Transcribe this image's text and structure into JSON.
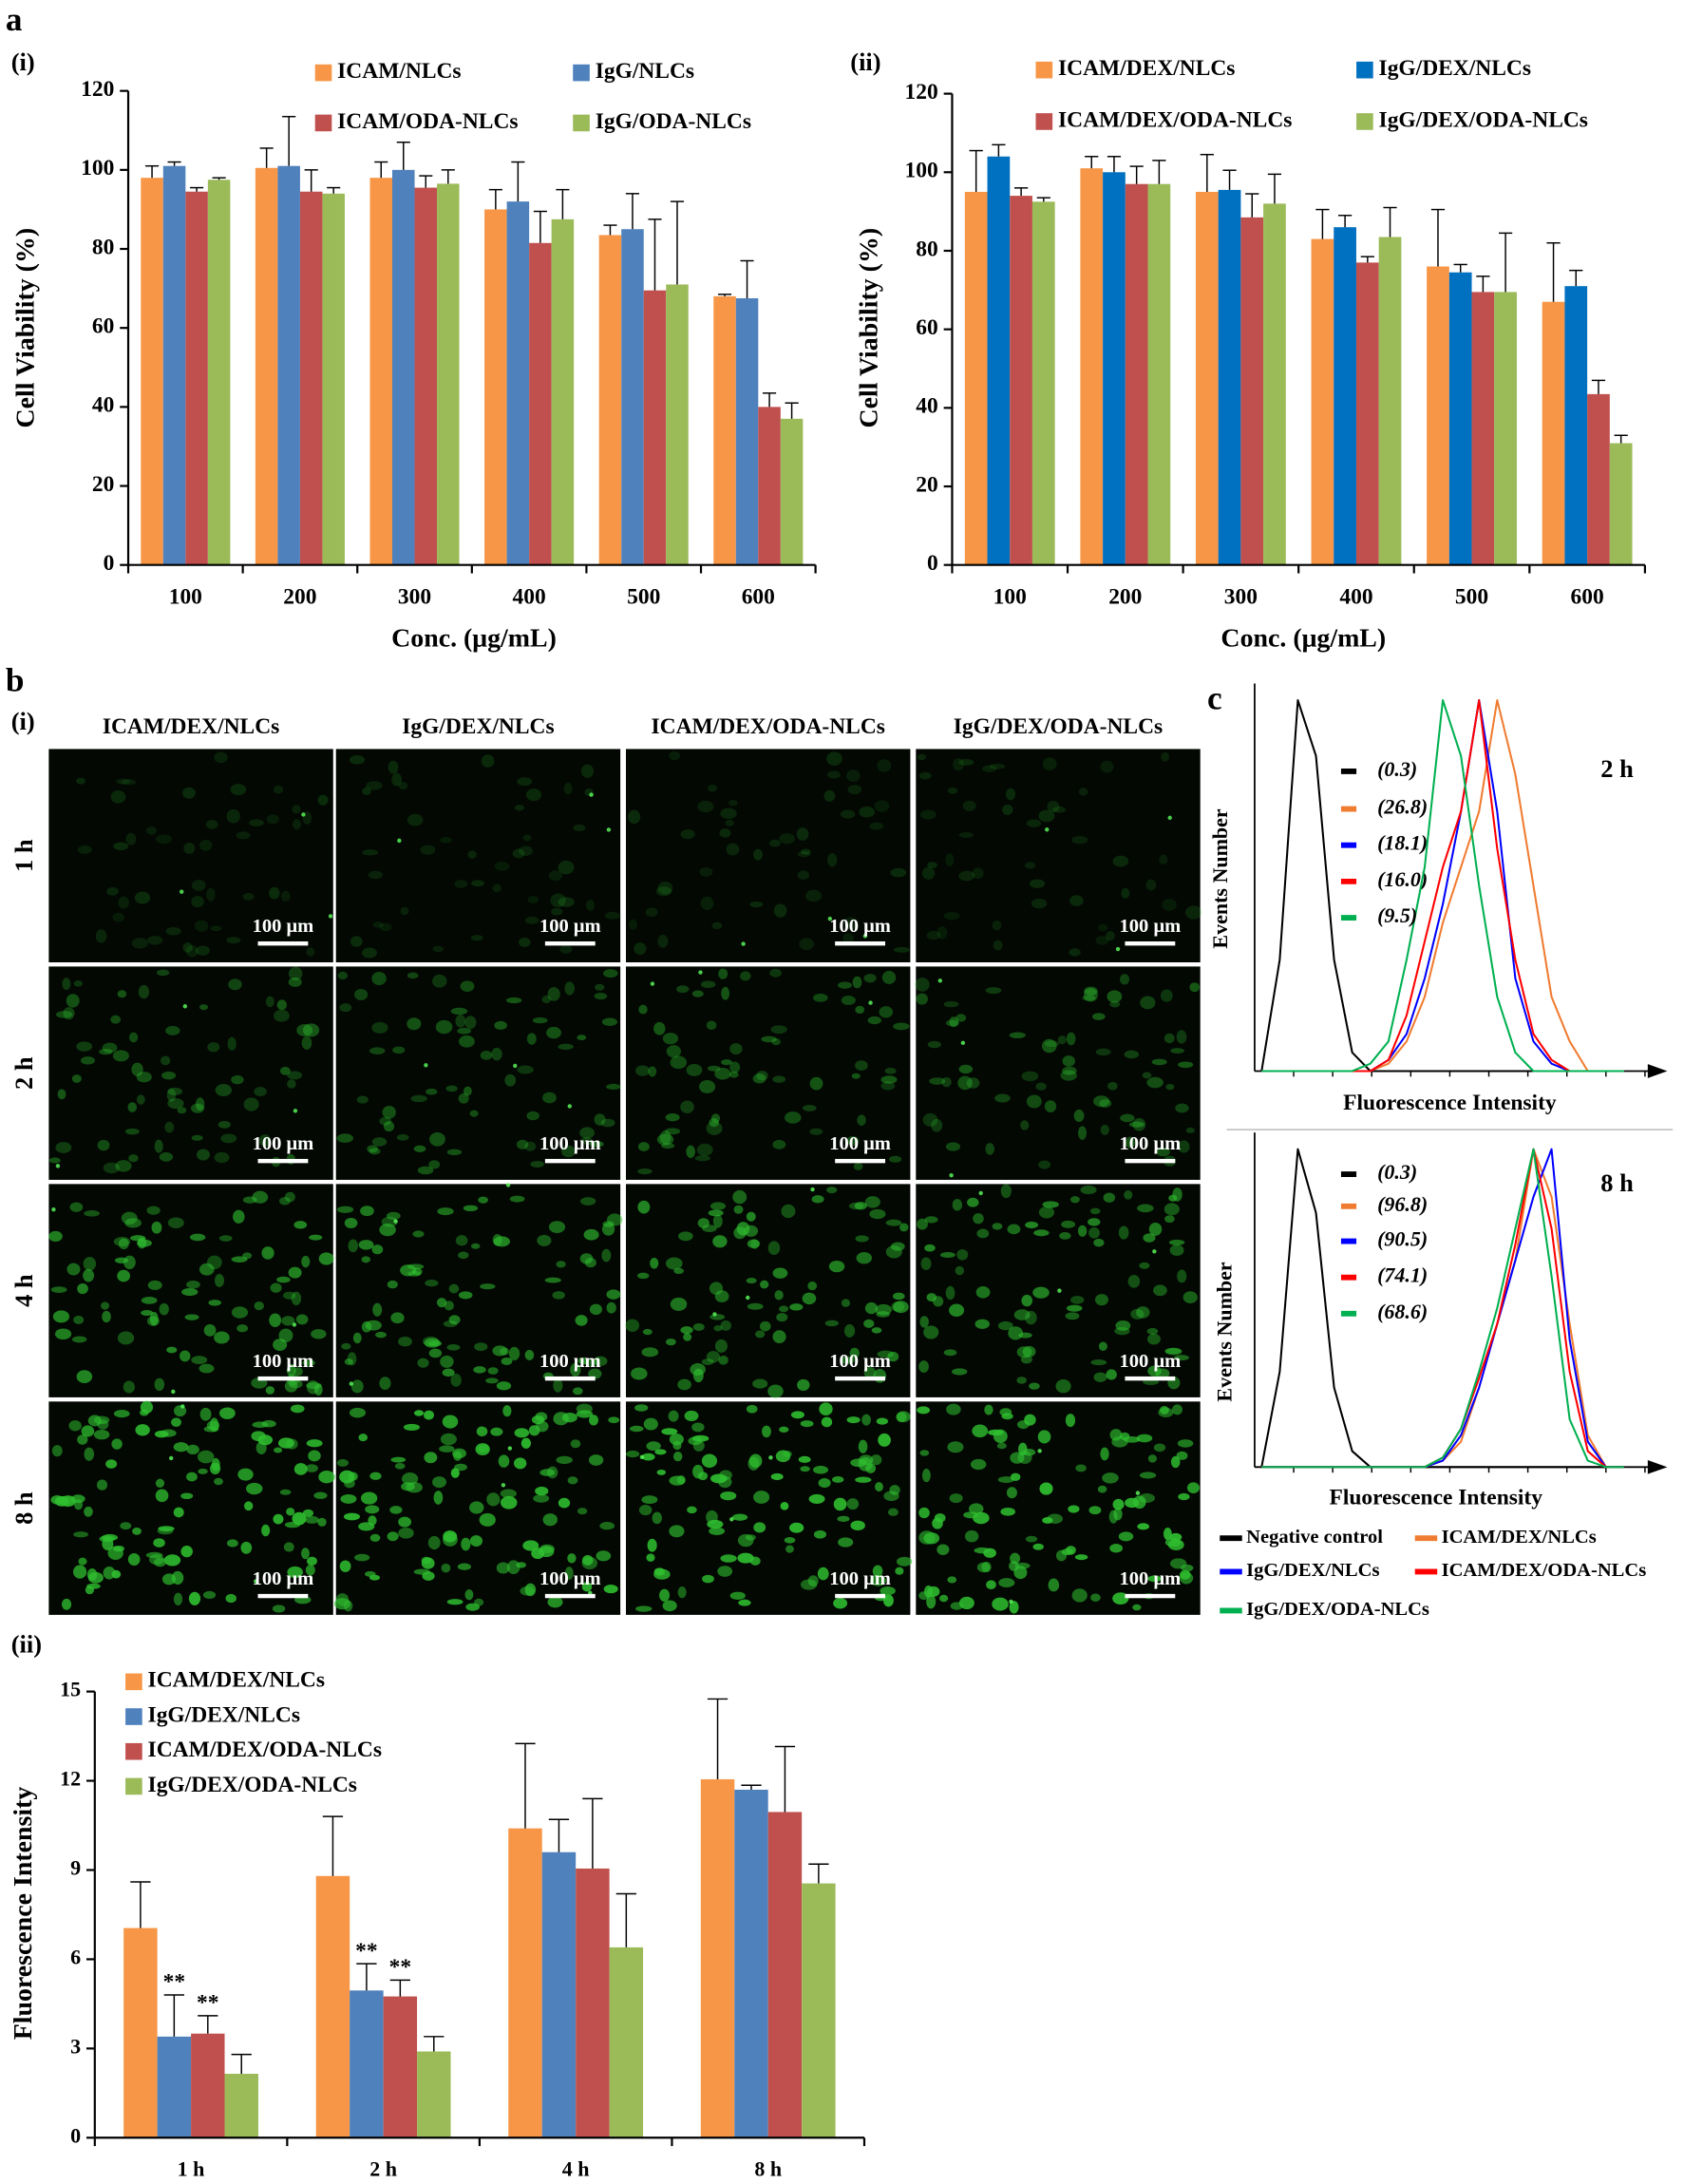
{
  "panel_labels": [
    "a",
    "b",
    "c"
  ],
  "micrographs": {
    "label": "(i)",
    "columns": [
      "ICAM/DEX/NLCs",
      "IgG/DEX/NLCs",
      "ICAM/DEX/ODA-NLCs",
      "IgG/DEX/ODA-NLCs"
    ],
    "rows": [
      "1 h",
      "2 h",
      "4 h",
      "8 h"
    ],
    "scale_bar": "100 μm"
  },
  "chart_data": [
    {
      "type": "bar",
      "label": "(i)",
      "xlabel": "Conc. (μg/mL)",
      "ylabel": "Cell Viability (%)",
      "categories": [
        "100",
        "200",
        "300",
        "400",
        "500",
        "600"
      ],
      "ylim": [
        0,
        120
      ],
      "yticks": [
        0,
        20,
        40,
        60,
        80,
        100,
        120
      ],
      "series": [
        {
          "name": "ICAM/NLCs",
          "color": "#f79646",
          "values": [
            98,
            100.5,
            98,
            90,
            83.5,
            68
          ],
          "errors": [
            3,
            5,
            4,
            5,
            2.5,
            0.5
          ]
        },
        {
          "name": "IgG/NLCs",
          "color": "#4f81bd",
          "values": [
            101,
            101,
            100,
            92,
            85,
            67.5
          ],
          "errors": [
            1,
            12.5,
            7,
            10,
            9,
            9.5
          ]
        },
        {
          "name": "ICAM/ODA-NLCs",
          "color": "#c0504d",
          "values": [
            94.5,
            94.5,
            95.5,
            81.5,
            69.5,
            40
          ],
          "errors": [
            1,
            5.5,
            3,
            8,
            18,
            3.5
          ]
        },
        {
          "name": "IgG/ODA-NLCs",
          "color": "#9bbb59",
          "values": [
            97.5,
            94,
            96.5,
            87.5,
            71,
            37
          ],
          "errors": [
            0.5,
            1.5,
            3.5,
            7.5,
            21,
            4
          ]
        }
      ]
    },
    {
      "type": "bar",
      "label": "(ii)",
      "xlabel": "Conc. (μg/mL)",
      "ylabel": "Cell Viability (%)",
      "categories": [
        "100",
        "200",
        "300",
        "400",
        "500",
        "600"
      ],
      "ylim": [
        0,
        120
      ],
      "yticks": [
        0,
        20,
        40,
        60,
        80,
        100,
        120
      ],
      "series": [
        {
          "name": "ICAM/DEX/NLCs",
          "color": "#f79646",
          "values": [
            95,
            101,
            95,
            83,
            76,
            67
          ],
          "errors": [
            10.5,
            3,
            9.5,
            7.5,
            14.5,
            15
          ]
        },
        {
          "name": "IgG/DEX/NLCs",
          "color": "#0070c0",
          "values": [
            104,
            100,
            95.5,
            86,
            74.5,
            71
          ],
          "errors": [
            3,
            4,
            5,
            3,
            2,
            4
          ]
        },
        {
          "name": "ICAM/DEX/ODA-NLCs",
          "color": "#c0504d",
          "values": [
            94,
            97,
            88.5,
            77,
            69.5,
            43.5
          ],
          "errors": [
            2,
            4.5,
            6,
            1.5,
            4,
            3.5
          ]
        },
        {
          "name": "IgG/DEX/ODA-NLCs",
          "color": "#9bbb59",
          "values": [
            92.5,
            97,
            92,
            83.5,
            69.5,
            31
          ],
          "errors": [
            1,
            6,
            7.5,
            7.5,
            15,
            2
          ]
        }
      ]
    },
    {
      "type": "bar",
      "label": "(ii)",
      "ylabel": "Fluorescence  Intensity",
      "categories": [
        "1 h",
        "2 h",
        "4 h",
        "8 h"
      ],
      "ylim": [
        0,
        15
      ],
      "yticks": [
        0,
        3,
        6,
        9,
        12,
        15
      ],
      "series": [
        {
          "name": "ICAM/DEX/NLCs",
          "color": "#f79646",
          "values": [
            7.05,
            8.8,
            10.4,
            12.05
          ],
          "errors": [
            1.55,
            2,
            2.85,
            2.7
          ]
        },
        {
          "name": "IgG/DEX/NLCs",
          "color": "#4f81bd",
          "values": [
            3.4,
            4.95,
            9.6,
            11.7
          ],
          "errors": [
            1.4,
            0.9,
            1.1,
            0.15
          ],
          "annotations": [
            "**",
            "**",
            null,
            null
          ]
        },
        {
          "name": "ICAM/DEX/ODA-NLCs",
          "color": "#c0504d",
          "values": [
            3.5,
            4.75,
            9.05,
            10.95
          ],
          "errors": [
            0.6,
            0.55,
            2.35,
            2.2
          ],
          "annotations": [
            "**",
            "**",
            null,
            null
          ]
        },
        {
          "name": "IgG/DEX/ODA-NLCs",
          "color": "#9bbb59",
          "values": [
            2.15,
            2.9,
            6.4,
            8.55
          ],
          "errors": [
            0.65,
            0.5,
            1.8,
            0.65
          ]
        }
      ]
    },
    {
      "type": "line",
      "title": "2 h",
      "xlabel": "Fluorescence  Intensity",
      "ylabel": "Events Number",
      "xlim": [
        0,
        100
      ],
      "ylim": [
        0,
        100
      ],
      "x": [
        0,
        5,
        10,
        15,
        20,
        25,
        30,
        35,
        40,
        45,
        50,
        55,
        60,
        65,
        70,
        75,
        80,
        85,
        90,
        95,
        100
      ],
      "series": [
        {
          "name": "Negative control",
          "color": "#000000",
          "mfi_label": "(0.3)",
          "values": [
            0,
            30,
            100,
            85,
            30,
            5,
            0,
            0,
            0,
            0,
            0,
            0,
            0,
            0,
            0,
            0,
            0,
            0,
            0,
            0,
            0
          ]
        },
        {
          "name": "ICAM/DEX/NLCs",
          "color": "#f07c31",
          "mfi_label": "(26.8)",
          "values": [
            0,
            0,
            0,
            0,
            0,
            0,
            0,
            2,
            8,
            20,
            40,
            55,
            70,
            100,
            80,
            50,
            20,
            8,
            0,
            0,
            0
          ]
        },
        {
          "name": "IgG/DEX/NLCs",
          "color": "#0000ff",
          "mfi_label": "(18.1)",
          "values": [
            0,
            0,
            0,
            0,
            0,
            0,
            0,
            3,
            10,
            25,
            45,
            70,
            100,
            70,
            25,
            8,
            2,
            0,
            0,
            0,
            0
          ]
        },
        {
          "name": "ICAM/DEX/ODA-NLCs",
          "color": "#ff0000",
          "mfi_label": "(16.0)",
          "values": [
            0,
            0,
            0,
            0,
            0,
            0,
            0,
            3,
            15,
            35,
            55,
            70,
            100,
            60,
            30,
            10,
            3,
            0,
            0,
            0,
            0
          ]
        },
        {
          "name": "IgG/DEX/ODA-NLCs",
          "color": "#00b050",
          "mfi_label": "(9.5)",
          "values": [
            0,
            0,
            0,
            0,
            0,
            0,
            2,
            8,
            30,
            55,
            100,
            85,
            50,
            20,
            5,
            0,
            0,
            0,
            0,
            0,
            0
          ]
        }
      ]
    },
    {
      "type": "line",
      "title": "8 h",
      "xlabel": "Fluorescence  Intensity",
      "ylabel": "Events Number",
      "xlim": [
        0,
        100
      ],
      "ylim": [
        0,
        100
      ],
      "x": [
        0,
        5,
        10,
        15,
        20,
        25,
        30,
        35,
        40,
        45,
        50,
        55,
        60,
        65,
        70,
        75,
        80,
        85,
        90,
        95,
        100
      ],
      "series": [
        {
          "color": "#000000",
          "mfi_label": "(0.3)",
          "values": [
            0,
            30,
            100,
            80,
            25,
            5,
            0,
            0,
            0,
            0,
            0,
            0,
            0,
            0,
            0,
            0,
            0,
            0,
            0,
            0,
            0
          ]
        },
        {
          "color": "#f07c31",
          "mfi_label": "(96.8)",
          "values": [
            0,
            0,
            0,
            0,
            0,
            0,
            0,
            0,
            0,
            0,
            2,
            8,
            25,
            45,
            65,
            100,
            85,
            45,
            10,
            0,
            0
          ]
        },
        {
          "color": "#0000ff",
          "mfi_label": "(90.5)",
          "values": [
            0,
            0,
            0,
            0,
            0,
            0,
            0,
            0,
            0,
            0,
            2,
            10,
            25,
            45,
            65,
            85,
            100,
            40,
            8,
            0,
            0
          ]
        },
        {
          "color": "#ff0000",
          "mfi_label": "(74.1)",
          "values": [
            0,
            0,
            0,
            0,
            0,
            0,
            0,
            0,
            0,
            0,
            3,
            12,
            28,
            45,
            70,
            100,
            75,
            30,
            5,
            0,
            0
          ]
        },
        {
          "color": "#00b050",
          "mfi_label": "(68.6)",
          "values": [
            0,
            0,
            0,
            0,
            0,
            0,
            0,
            0,
            0,
            0,
            3,
            12,
            30,
            50,
            75,
            100,
            60,
            15,
            2,
            0,
            0
          ]
        }
      ]
    }
  ]
}
